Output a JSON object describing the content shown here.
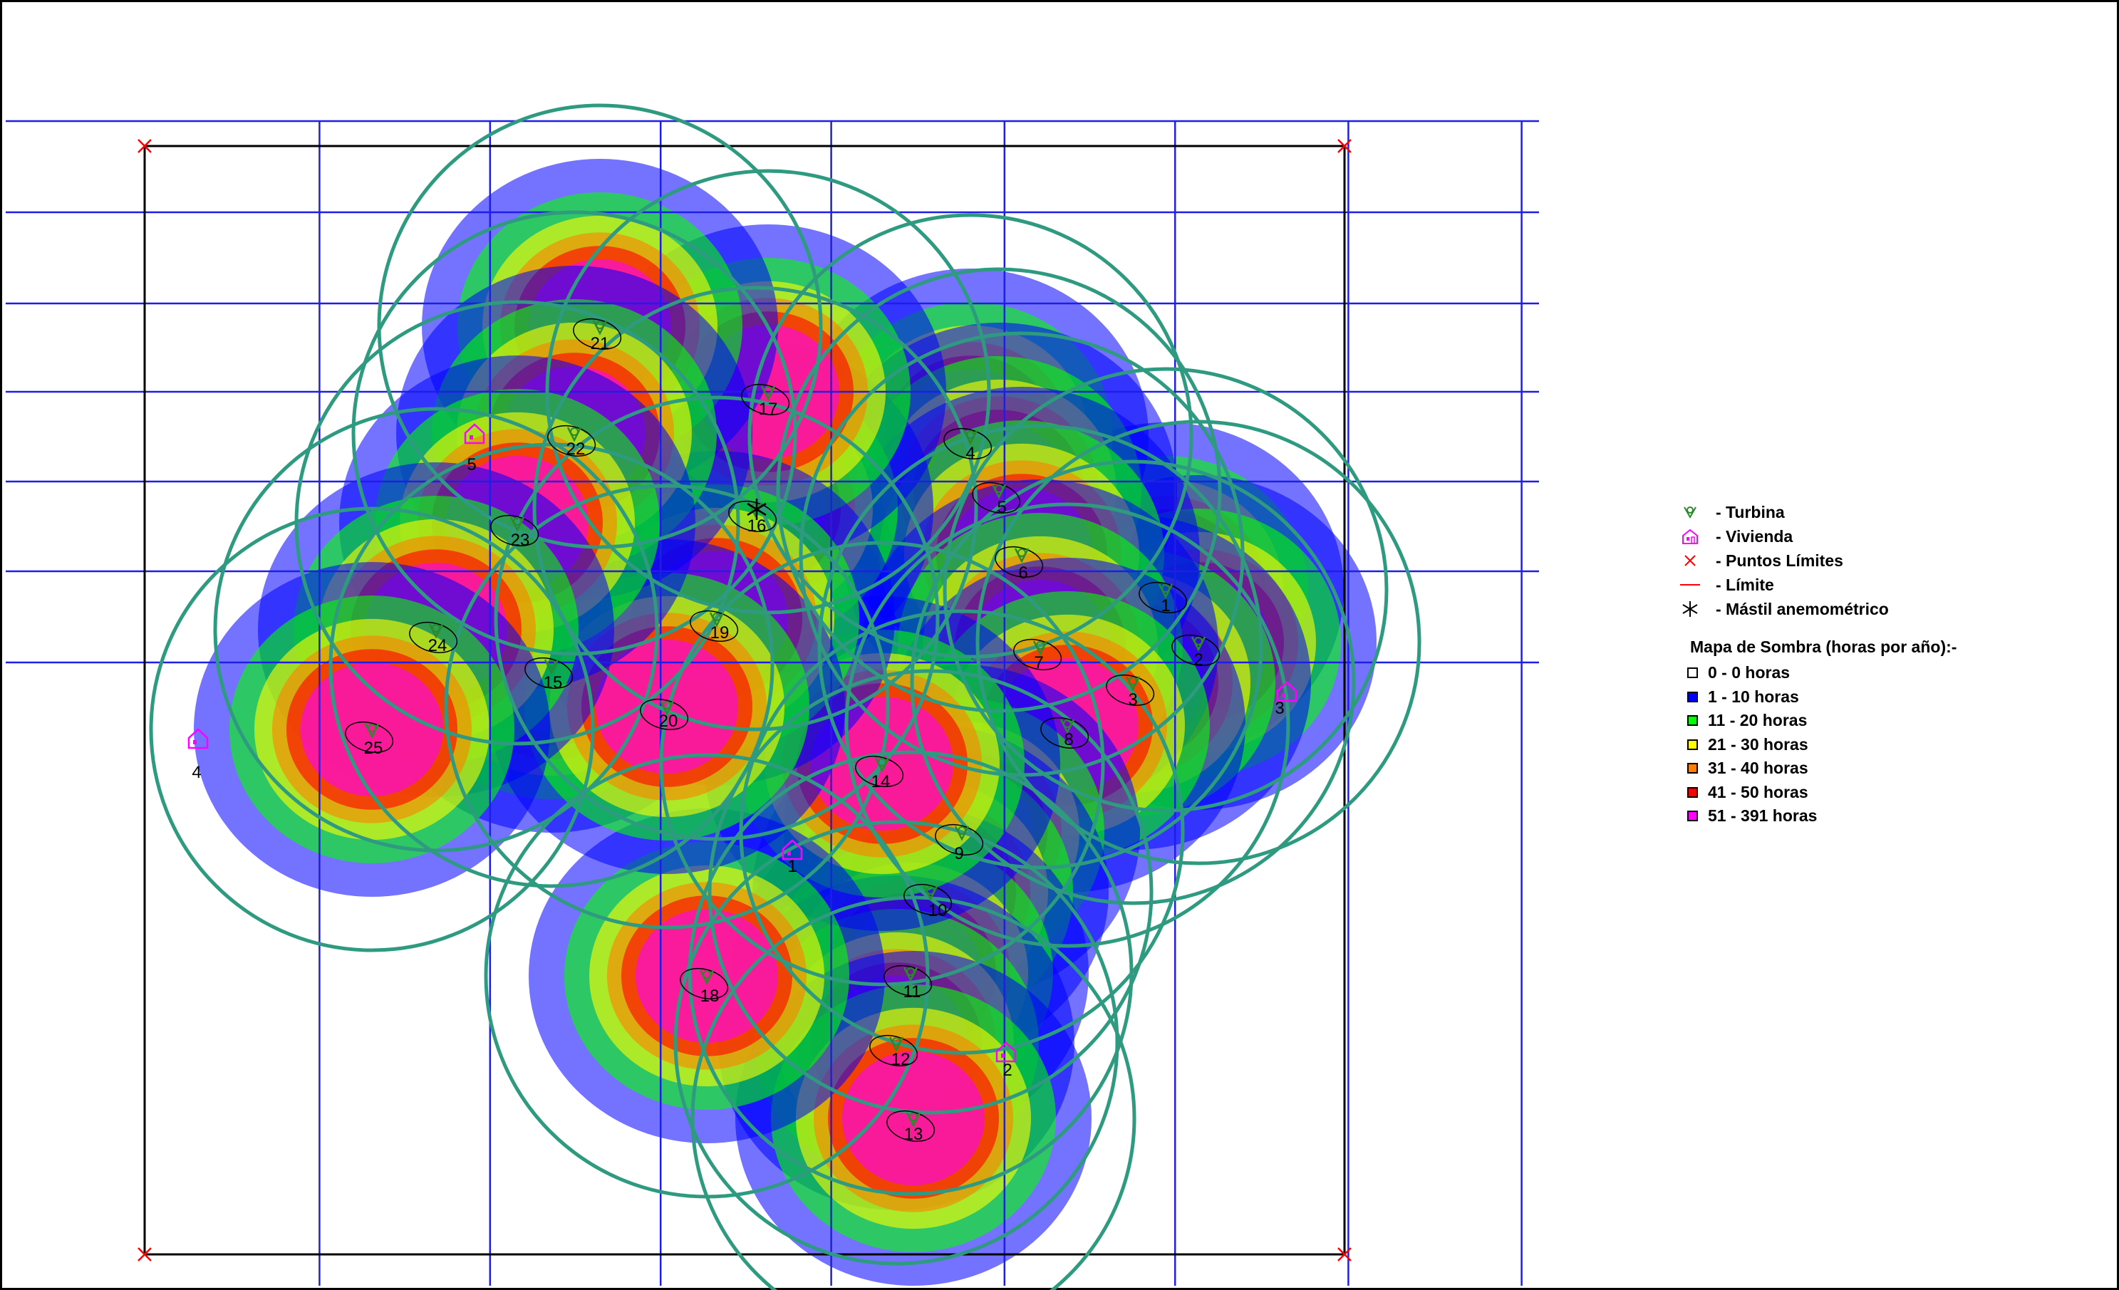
{
  "legend": {
    "items": [
      {
        "icon": "turbine-icon",
        "label": "- Turbina"
      },
      {
        "icon": "house-icon",
        "label": "- Vivienda"
      },
      {
        "icon": "cross-icon",
        "label": "- Puntos Límites"
      },
      {
        "icon": "line-icon",
        "label": "- Límite"
      },
      {
        "icon": "asterisk-icon",
        "label": "- Mástil anemométrico"
      }
    ],
    "shadow_title": "Mapa de Sombra (horas por año):-",
    "shadow_classes": [
      {
        "label": "0 - 0 horas",
        "color": "#ffffff"
      },
      {
        "label": "1 - 10 horas",
        "color": "#0000ff"
      },
      {
        "label": "11 - 20 horas",
        "color": "#00ff00"
      },
      {
        "label": "21 - 30 horas",
        "color": "#ffff00"
      },
      {
        "label": "31 - 40 horas",
        "color": "#ff8000"
      },
      {
        "label": "41 - 50 horas",
        "color": "#ff0000"
      },
      {
        "label": "51 - 391 horas",
        "color": "#ff00ff"
      }
    ]
  },
  "colors": {
    "grid": "#1e1ee6",
    "boundary": "#000000",
    "circle": "#2e9a80",
    "limit_point": "#ff0000",
    "house": "#ff00ff",
    "turbine": "#2a8a2a"
  },
  "turbines": [
    {
      "label": "1"
    },
    {
      "label": "2"
    },
    {
      "label": "3"
    },
    {
      "label": "4"
    },
    {
      "label": "5"
    },
    {
      "label": "6"
    },
    {
      "label": "7"
    },
    {
      "label": "8"
    },
    {
      "label": "9"
    },
    {
      "label": "10"
    },
    {
      "label": "11"
    },
    {
      "label": "12"
    },
    {
      "label": "13"
    },
    {
      "label": "14"
    },
    {
      "label": "15"
    },
    {
      "label": "16"
    },
    {
      "label": "17"
    },
    {
      "label": "18"
    },
    {
      "label": "19"
    },
    {
      "label": "20"
    },
    {
      "label": "21"
    },
    {
      "label": "22"
    },
    {
      "label": "23"
    },
    {
      "label": "24"
    },
    {
      "label": "25"
    }
  ],
  "houses": [
    {
      "label": "1"
    },
    {
      "label": "2"
    },
    {
      "label": "3"
    },
    {
      "label": "4"
    },
    {
      "label": "5"
    }
  ]
}
